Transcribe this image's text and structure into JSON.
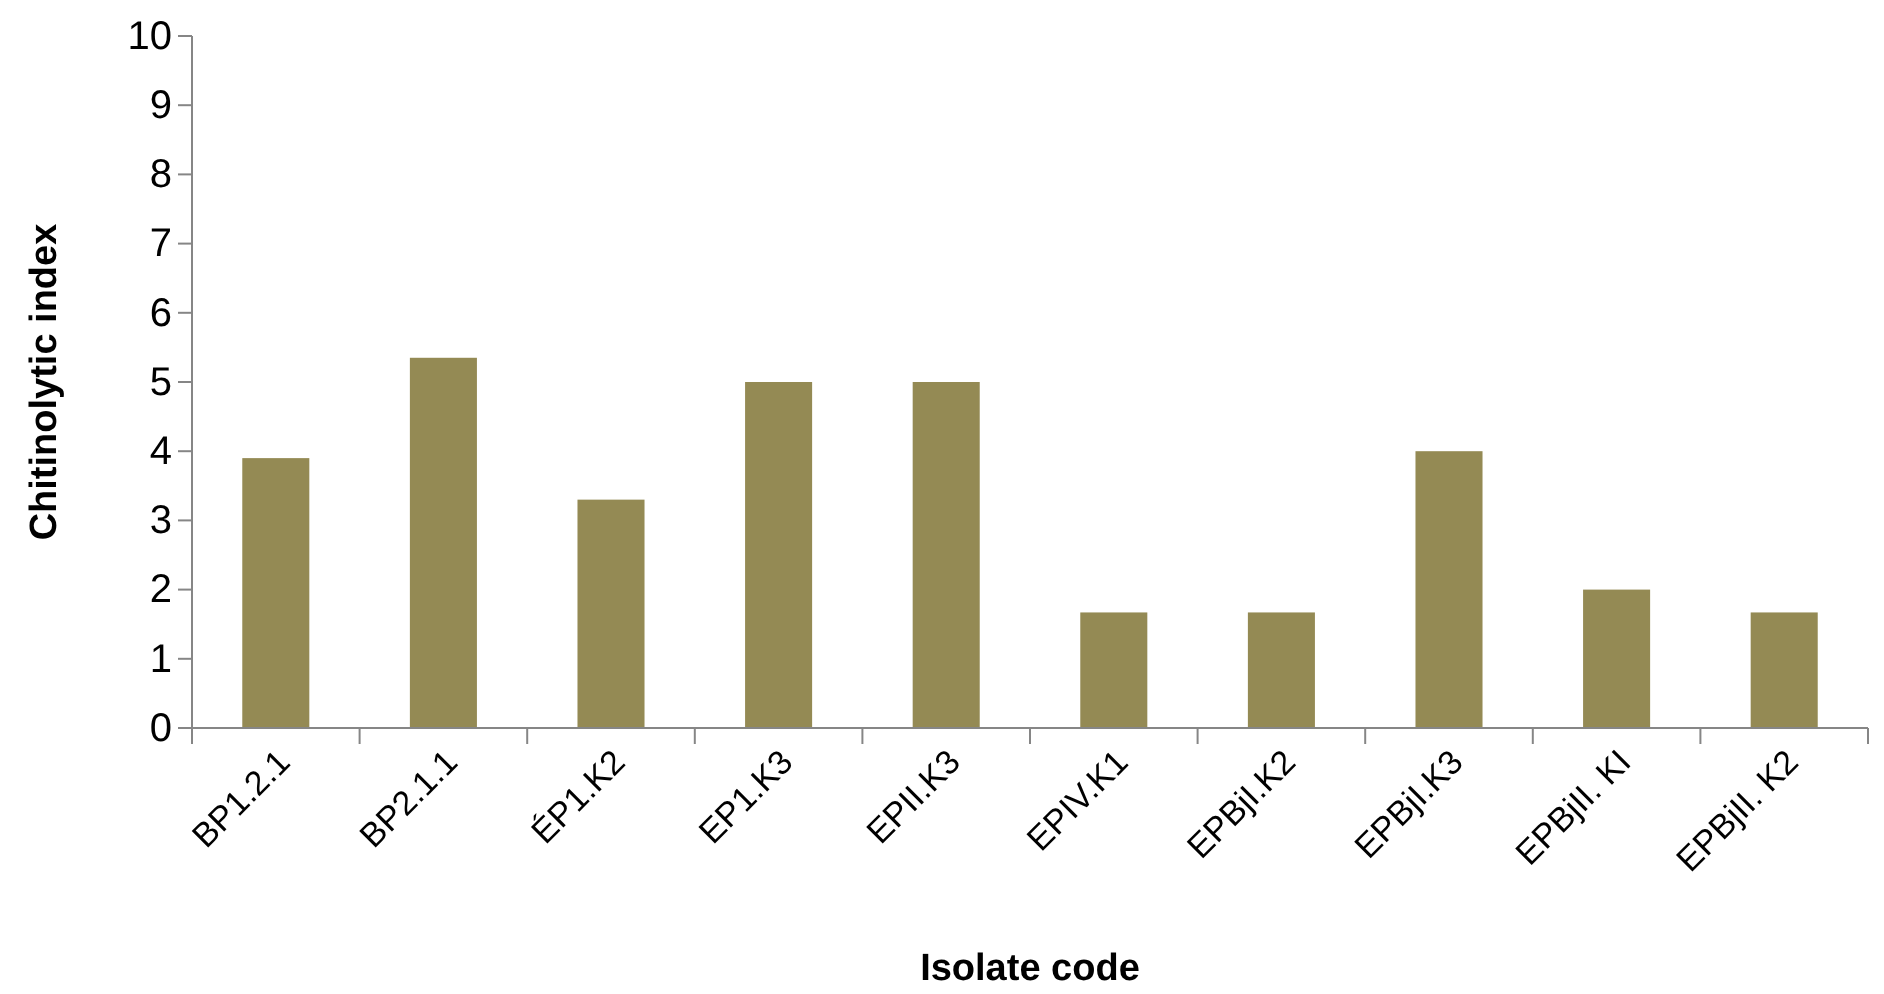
{
  "chart_data": {
    "type": "bar",
    "xlabel": "Isolate code",
    "ylabel": "Chitinolytic index",
    "categories": [
      "BP1.2.1",
      "BP2.1.1",
      "ÉP1.K2",
      "EP1.K3",
      "EPII.K3",
      "EPIV.K1",
      "EPBjI.K2",
      "EPBjI.K3",
      "EPBjII. KI",
      "EPBjII. K2"
    ],
    "values": [
      3.9,
      5.35,
      3.3,
      5,
      5,
      1.67,
      1.67,
      4,
      2,
      1.67
    ],
    "color": "#948a54",
    "ylim": [
      0,
      10
    ],
    "yticks": [
      0,
      1,
      2,
      3,
      4,
      5,
      6,
      7,
      8,
      9,
      10
    ],
    "grid": false
  }
}
